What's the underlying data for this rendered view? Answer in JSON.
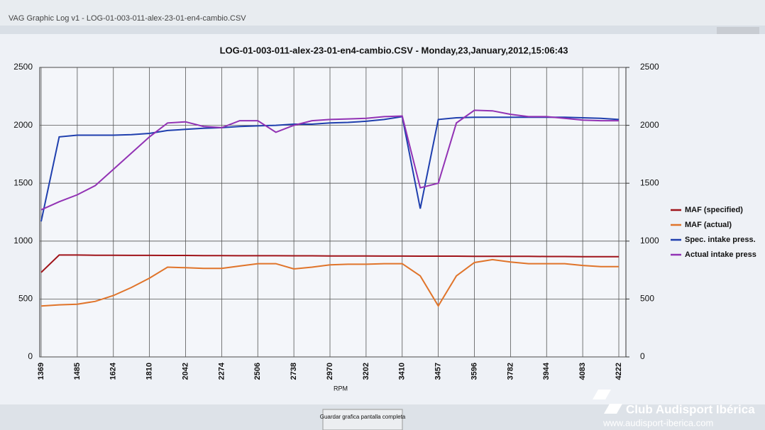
{
  "window_title": "VAG Graphic Log  v1 -  LOG-01-003-011-alex-23-01-en4-cambio.CSV",
  "button": "Guardar grafica pantalla completa",
  "watermark": {
    "brand": "Club Audisport Ibérica",
    "url": "www.audisport-iberica.com"
  },
  "chart_data": {
    "type": "line",
    "title": "LOG-01-003-011-alex-23-01-en4-cambio.CSV - Monday,23,January,2012,15:06:43",
    "x_label": "RPM",
    "categories": [
      "1369",
      null,
      "1485",
      null,
      "1624",
      null,
      "1810",
      null,
      "2042",
      null,
      "2274",
      null,
      "2506",
      null,
      "2738",
      null,
      "2970",
      null,
      "3202",
      null,
      "3410",
      null,
      "3457",
      null,
      "3596",
      null,
      "3782",
      null,
      "3944",
      null,
      "4083",
      null,
      "4222"
    ],
    "ylim": [
      0,
      2500
    ],
    "yticks": [
      0,
      500,
      1000,
      1500,
      2000,
      2500
    ],
    "y2lim": [
      0,
      2500
    ],
    "y2ticks": [
      0,
      500,
      1000,
      1500,
      2000,
      2500
    ],
    "grid": true,
    "legend": "right",
    "series": [
      {
        "name": "MAF (specified)",
        "color": "#a0141a",
        "values": [
          730,
          880,
          880,
          878,
          878,
          877,
          877,
          876,
          876,
          875,
          875,
          874,
          874,
          874,
          873,
          873,
          872,
          872,
          872,
          871,
          871,
          870,
          870,
          870,
          869,
          869,
          868,
          868,
          867,
          867,
          866,
          866,
          865
        ]
      },
      {
        "name": "MAF (actual)",
        "color": "#e0742a",
        "values": [
          440,
          450,
          455,
          480,
          530,
          600,
          680,
          775,
          770,
          765,
          765,
          785,
          805,
          805,
          760,
          775,
          795,
          800,
          800,
          805,
          805,
          700,
          440,
          700,
          815,
          840,
          820,
          805,
          805,
          805,
          790,
          780,
          780
        ]
      },
      {
        "name": "Spec. intake press.",
        "color": "#1f3fae",
        "axis": "y2",
        "values": [
          1170,
          1900,
          1915,
          1915,
          1915,
          1920,
          1930,
          1955,
          1965,
          1975,
          1980,
          1990,
          1995,
          2000,
          2010,
          2010,
          2020,
          2025,
          2035,
          2050,
          2075,
          1280,
          2050,
          2065,
          2070,
          2070,
          2070,
          2070,
          2070,
          2070,
          2065,
          2060,
          2050
        ]
      },
      {
        "name": "Actual intake press",
        "color": "#9232b4",
        "axis": "y2",
        "values": [
          1270,
          1340,
          1400,
          1480,
          1620,
          1760,
          1900,
          2020,
          2030,
          1990,
          1980,
          2040,
          2040,
          1940,
          2000,
          2040,
          2050,
          2055,
          2060,
          2075,
          2080,
          1460,
          1500,
          2020,
          2130,
          2125,
          2095,
          2075,
          2075,
          2060,
          2045,
          2040,
          2040
        ]
      }
    ]
  }
}
